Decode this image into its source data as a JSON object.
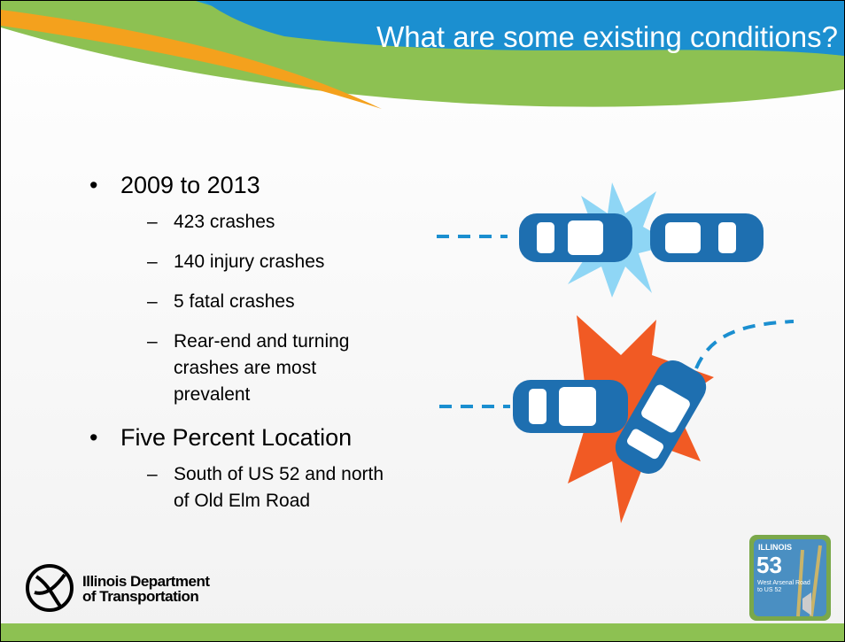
{
  "title": "What are some existing conditions?",
  "bullets": [
    {
      "text": "2009 to 2013",
      "items": [
        {
          "lines": [
            "423 crashes"
          ]
        },
        {
          "lines": [
            "140 injury crashes"
          ]
        },
        {
          "lines": [
            "5 fatal crashes"
          ]
        },
        {
          "lines": [
            "Rear-end and turning",
            "crashes are most",
            "prevalent"
          ]
        }
      ]
    },
    {
      "text": "Five Percent Location",
      "items": [
        {
          "lines": [
            "South of US 52 and north",
            "of Old Elm Road"
          ]
        }
      ]
    }
  ],
  "logo": {
    "lines": [
      "Illinois Department",
      "of Transportation"
    ]
  },
  "badge": {
    "state": "ILLINOIS",
    "route": "53",
    "lines": [
      "West Arsenal Road",
      "to US 52"
    ]
  }
}
